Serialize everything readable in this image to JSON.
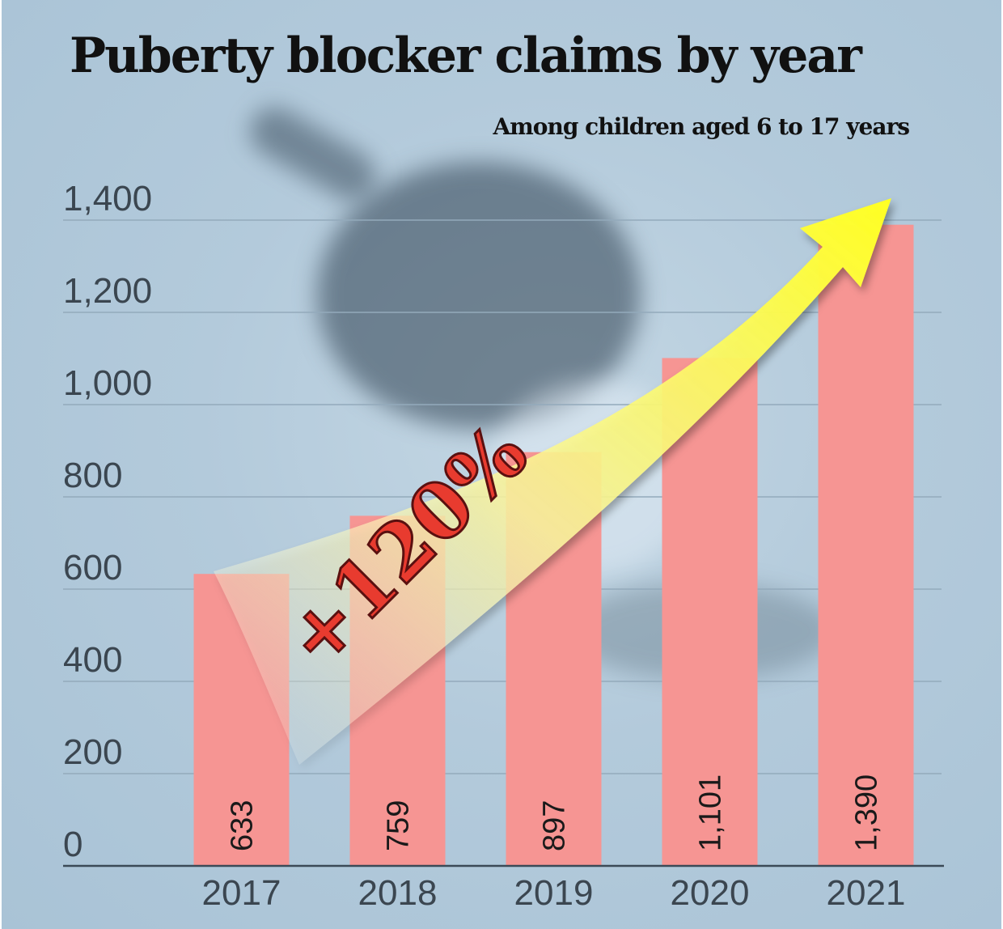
{
  "chart_data": {
    "type": "bar",
    "title": "Puberty blocker claims by year",
    "subtitle": "Among children aged 6 to 17 years",
    "categories": [
      "2017",
      "2018",
      "2019",
      "2020",
      "2021"
    ],
    "values": [
      633,
      759,
      897,
      1101,
      1390
    ],
    "value_labels": [
      "633",
      "759",
      "897",
      "1,101",
      "1,390"
    ],
    "y_ticks": [
      "0",
      "200",
      "400",
      "600",
      "800",
      "1,000",
      "1,200",
      "1,400"
    ],
    "y_tick_values": [
      0,
      200,
      400,
      600,
      800,
      1000,
      1200,
      1400
    ],
    "ylim": [
      0,
      1400
    ],
    "grid": true,
    "annotation": "+120%",
    "colors": {
      "bar": "#f69593",
      "grid": "#93aabb",
      "axis": "#3b4a57",
      "arrow": "#ffff33",
      "annotation": "#e83b2f"
    }
  }
}
